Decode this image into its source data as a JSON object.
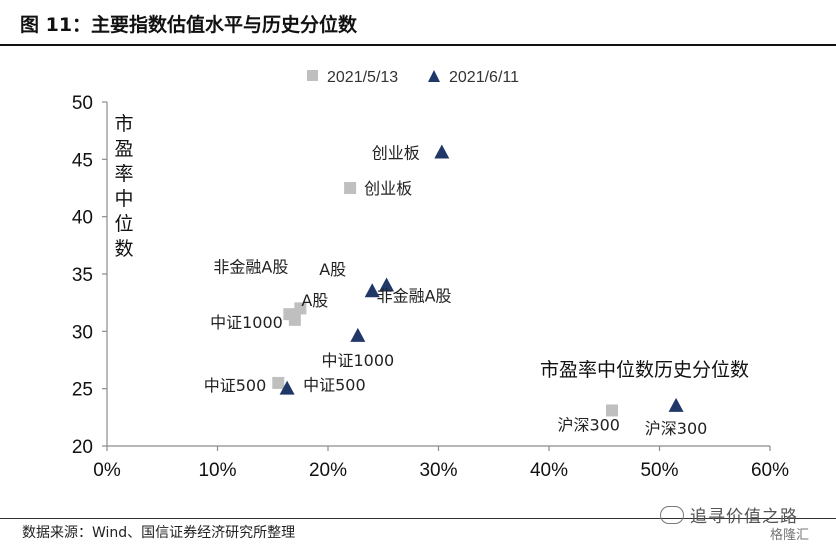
{
  "title": "图 11：主要指数估值水平与历史分位数",
  "source": "数据来源：Wind、国信证券经济研究所整理",
  "watermark": "追寻价值之路",
  "logo": "格隆汇",
  "chart_data": {
    "type": "scatter",
    "xlabel": "",
    "ylabel": "市盈率中位数",
    "annotation": "市盈率中位数历史分位数",
    "xlim": [
      0,
      0.6
    ],
    "ylim": [
      20,
      50
    ],
    "xticks": [
      0,
      0.1,
      0.2,
      0.3,
      0.4,
      0.5,
      0.6
    ],
    "xtick_labels": [
      "0%",
      "10%",
      "20%",
      "30%",
      "40%",
      "50%",
      "60%"
    ],
    "yticks": [
      20,
      25,
      30,
      35,
      40,
      45,
      50
    ],
    "ytick_labels": [
      "20",
      "25",
      "30",
      "35",
      "40",
      "45",
      "50"
    ],
    "grid": false,
    "legend": "top-center",
    "series": [
      {
        "name": "2021/5/13",
        "marker": "square",
        "color": "#bfbfbf",
        "points": [
          {
            "label": "创业板",
            "x": 0.22,
            "y": 42.5
          },
          {
            "label": "非金融A股",
            "x": 0.175,
            "y": 32.0
          },
          {
            "label": "A股",
            "x": 0.165,
            "y": 31.5
          },
          {
            "label": "中证1000",
            "x": 0.17,
            "y": 31.0
          },
          {
            "label": "中证500",
            "x": 0.155,
            "y": 25.5
          },
          {
            "label": "沪深300",
            "x": 0.457,
            "y": 23.1
          }
        ]
      },
      {
        "name": "2021/6/11",
        "marker": "triangle",
        "color": "#1f3868",
        "points": [
          {
            "label": "创业板",
            "x": 0.303,
            "y": 45.6
          },
          {
            "label": "非金融A股",
            "x": 0.253,
            "y": 34.0
          },
          {
            "label": "A股",
            "x": 0.24,
            "y": 33.5
          },
          {
            "label": "中证1000",
            "x": 0.227,
            "y": 29.6
          },
          {
            "label": "中证500",
            "x": 0.163,
            "y": 25.0
          },
          {
            "label": "沪深300",
            "x": 0.515,
            "y": 23.5
          }
        ]
      }
    ]
  }
}
